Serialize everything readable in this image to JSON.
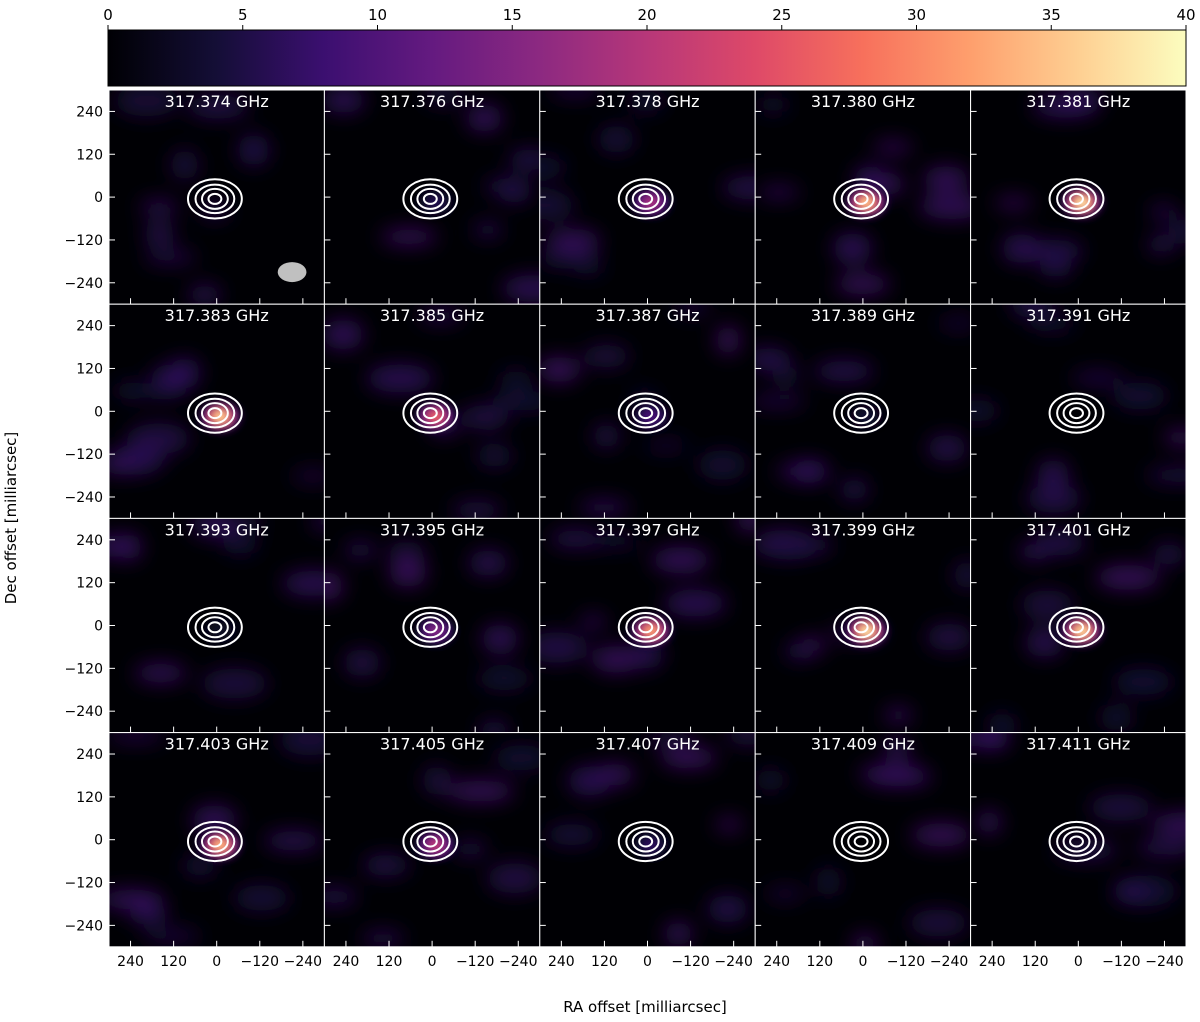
{
  "chart_data": {
    "type": "heatmap",
    "colorbar": {
      "range": [
        0,
        40
      ],
      "ticks": [
        "0",
        "5",
        "10",
        "15",
        "20",
        "25",
        "30",
        "35",
        "40"
      ],
      "colormap": "magma"
    },
    "xlabel": "RA offset [milliarcsec]",
    "ylabel": "Dec offset [milliarcsec]",
    "x_ticks": [
      "240",
      "120",
      "0",
      "−120",
      "−240"
    ],
    "y_ticks": [
      "240",
      "120",
      "0",
      "−120",
      "−240"
    ],
    "xlim": [
      300,
      -300
    ],
    "ylim": [
      -300,
      300
    ],
    "contour_color": "#ffffff",
    "beam_color": "#c0c0c0",
    "channels": [
      {
        "label": "317.374 GHz",
        "peak": 1
      },
      {
        "label": "317.376 GHz",
        "peak": 6
      },
      {
        "label": "317.378 GHz",
        "peak": 20
      },
      {
        "label": "317.380 GHz",
        "peak": 37
      },
      {
        "label": "317.381 GHz",
        "peak": 40
      },
      {
        "label": "317.383 GHz",
        "peak": 38
      },
      {
        "label": "317.385 GHz",
        "peak": 28
      },
      {
        "label": "317.387 GHz",
        "peak": 10
      },
      {
        "label": "317.389 GHz",
        "peak": 4
      },
      {
        "label": "317.391 GHz",
        "peak": 1
      },
      {
        "label": "317.393 GHz",
        "peak": 3
      },
      {
        "label": "317.395 GHz",
        "peak": 16
      },
      {
        "label": "317.397 GHz",
        "peak": 34
      },
      {
        "label": "317.399 GHz",
        "peak": 40
      },
      {
        "label": "317.401 GHz",
        "peak": 39
      },
      {
        "label": "317.403 GHz",
        "peak": 36
      },
      {
        "label": "317.405 GHz",
        "peak": 22
      },
      {
        "label": "317.407 GHz",
        "peak": 7
      },
      {
        "label": "317.409 GHz",
        "peak": 2
      },
      {
        "label": "317.411 GHz",
        "peak": 1
      }
    ]
  }
}
